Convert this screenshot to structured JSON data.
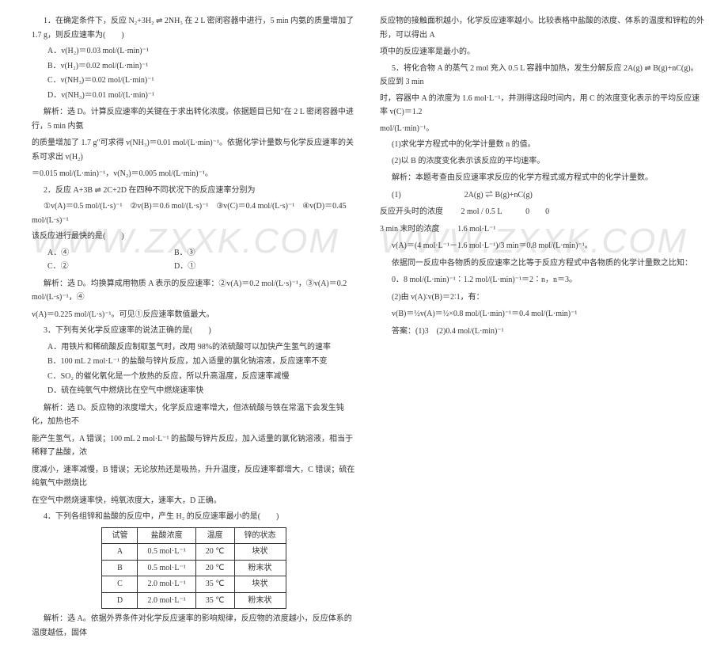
{
  "watermark": "WWW.ZXXK.COM",
  "left": {
    "q1": "1．在确定条件下，反应 N₂+3H₂ ⇌ 2NH₃ 在 2 L 密闭容器中进行，5 min 内氨的质量增加了 1.7 g，则反应速率为(　　)",
    "q1a": "A．v(H₂)＝0.03 mol/(L·min)⁻¹",
    "q1b": "B．v(H₂)＝0.02 mol/(L·min)⁻¹",
    "q1c": "C．v(NH₃)＝0.02 mol/(L·min)⁻¹",
    "q1d": "D．v(NH₃)＝0.01 mol/(L·min)⁻¹",
    "q1exp1": "解析：选 D。计算反应速率的关键在于求出转化浓度。依据题目已知\"在 2 L 密闭容器中进行，5 min 内氨",
    "q1exp2": "的质量增加了 1.7 g\"可求得 v(NH₃)＝0.01 mol/(L·min)⁻¹。依据化学计量数与化学反应速率的关系可求出 v(H₂)",
    "q1exp3": "＝0.015 mol/(L·min)⁻¹，v(N₂)＝0.005 mol/(L·min)⁻¹。",
    "q2": "2．反应 A+3B ⇌ 2C+2D 在四种不同状况下的反应速率分别为",
    "q2line": "①v(A)＝0.5 mol/(L·s)⁻¹　②v(B)＝0.6 mol/(L·s)⁻¹　③v(C)＝0.4 mol/(L·s)⁻¹　④v(D)＝0.45 mol/(L·s)⁻¹",
    "q2ask": "该反应进行最快的是(　　)",
    "q2a": "A．④",
    "q2b": "B．③",
    "q2c": "C．②",
    "q2d": "D．①",
    "q2exp1": "解析：选 D。均换算成用物质 A 表示的反应速率：②v(A)＝0.2 mol/(L·s)⁻¹，③v(A)＝0.2 mol/(L·s)⁻¹，④",
    "q2exp2": "v(A)＝0.225 mol/(L·s)⁻¹。可见①反应速率数值最大。",
    "q3": "3．下列有关化学反应速率的说法正确的是(　　)",
    "q3a": "A．用铁片和稀硫酸反应制取氢气时，改用 98%的浓硫酸可以加快产生氢气的速率",
    "q3b": "B．100 mL 2 mol·L⁻¹ 的盐酸与锌片反应，加入适量的氯化钠溶液，反应速率不变",
    "q3c": "C．SO₂ 的催化氧化是一个放热的反应，所以升高温度，反应速率减慢",
    "q3d": "D．硫在纯氧气中燃烧比在空气中燃烧速率快",
    "q3exp1": "解析：选 D。反应物的浓度增大，化学反应速率增大，但浓硫酸与铁在常温下会发生钝化，加热也不",
    "q3exp2": "能产生氢气，A 错误；100 mL 2 mol·L⁻¹ 的盐酸与锌片反应，加入适量的氯化钠溶液，相当于稀释了盐酸，浓",
    "q3exp3": "度减小，速率减慢，B 错误；无论放热还是吸热，升升温度，反应速率都增大，C 错误；硫在纯氧气中燃烧比",
    "q3exp4": "在空气中燃烧速率快，纯氧浓度大，速率大，D 正确。",
    "q4": "4．下列各组锌和盐酸的反应中，产生 H₂ 的反应速率最小的是(　　)",
    "table": {
      "headers": [
        "试管",
        "盐酸浓度",
        "温度",
        "锌的状态"
      ],
      "rows": [
        [
          "A",
          "0.5 mol·L⁻¹",
          "20 ℃",
          "块状"
        ],
        [
          "B",
          "0.5 mol·L⁻¹",
          "20 ℃",
          "粉末状"
        ],
        [
          "C",
          "2.0 mol·L⁻¹",
          "35 ℃",
          "块状"
        ],
        [
          "D",
          "2.0 mol·L⁻¹",
          "35 ℃",
          "粉末状"
        ]
      ]
    },
    "q4exp": "解析：选 A。依据外界条件对化学反应速率的影响规律，反应物的浓度越小，反应体系的温度越低，固体"
  },
  "right": {
    "cont1": "反应物的接触面积越小，化学反应速率越小。比较表格中盐酸的浓度、体系的温度和锌粒的外形，可以得出 A",
    "cont2": "项中的反应速率是最小的。",
    "q5a": "5．将化合物 A 的蒸气 2 mol 充入 0.5 L 容器中加热，发生分解反应 2A(g) ⇌ B(g)+nC(g)。反应到 3 min",
    "q5b": "时，容器中 A 的浓度为 1.6 mol·L⁻¹，并测得这段时间内，用 C 的浓度变化表示的平均反应速率 v(C)＝1.2",
    "q5c": "mol/(L·min)⁻¹。",
    "q5_1": "(1)求化学方程式中的化学计量数 n 的值。",
    "q5_2": "(2)以 B 的浓度变化表示该反应的平均速率。",
    "q5exp1": "解析：本题考查由反应速率求反应的化学方程式或方程式中的化学计量数。",
    "eq_hdr": "(1)　　　　　　　　2A(g) ⇌ B(g)+nC(g)",
    "eq_l1_label": "反应开头时的浓度",
    "eq_l1_val": "2 mol / 0.5 L　　　0　　0",
    "eq_l2_label": "3 min 末时的浓度",
    "eq_l2_val": "1.6 mol·L⁻¹",
    "vA": "v(A)＝(4 mol·L⁻¹－1.6 mol·L⁻¹)/3 min＝0.8 mol/(L·min)⁻¹。",
    "ratio_intro": "依据同一反应中各物质的反应速率之比等于反应方程式中各物质的化学计量数之比知：",
    "ratio": "0．8 mol/(L·min)⁻¹∶1.2 mol/(L·min)⁻¹＝2∶n，n＝3。",
    "part2a": "(2)由 v(A)∶v(B)＝2∶1，有：",
    "part2b": "v(B)＝½v(A)＝½×0.8 mol/(L·min)⁻¹＝0.4 mol/(L·min)⁻¹",
    "ans": "答案：(1)3　(2)0.4 mol/(L·min)⁻¹"
  }
}
